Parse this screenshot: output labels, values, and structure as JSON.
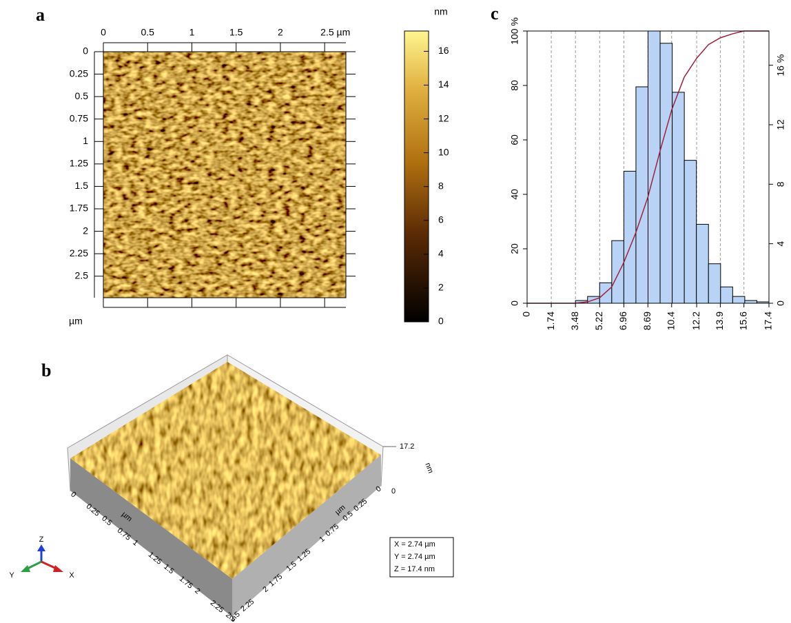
{
  "panel_a": {
    "label": "a",
    "xticks": [
      0,
      0.5,
      1,
      1.5,
      2,
      {
        "value": 2.5,
        "label": "2.5 µm"
      }
    ],
    "yticks": [
      0,
      0.25,
      0.5,
      0.75,
      1,
      1.25,
      1.5,
      1.75,
      2,
      2.25,
      2.5
    ],
    "xlim": [
      0,
      2.74
    ],
    "ylim": [
      0,
      2.74
    ],
    "y_unit": "µm",
    "colorbar_unit": "nm",
    "colorbar_ticks": [
      0,
      2,
      4,
      6,
      8,
      10,
      12,
      14,
      16
    ],
    "colorbar_lim": [
      0,
      17.2
    ]
  },
  "panel_b": {
    "label": "b",
    "z_labels": [
      17.2,
      0
    ],
    "z_unit": "nm",
    "unit": "µm",
    "left_ticks": [
      0,
      0.25,
      0.5,
      0.75,
      1,
      1.25,
      1.5,
      1.75,
      2,
      2.25,
      2.5
    ],
    "right_ticks": [
      0,
      0.25,
      0.5,
      0.75,
      1,
      1.25,
      1.5,
      1.75,
      2,
      2.25,
      2.5
    ],
    "info": [
      "X = 2.74 µm",
      "Y = 2.74 µm",
      "Z = 17.4 nm"
    ],
    "axes": [
      "Z",
      "Y",
      "X"
    ]
  },
  "chart_data": {
    "type": "histogram",
    "label": "c",
    "bins": [
      0,
      0.87,
      1.74,
      2.61,
      3.48,
      4.35,
      5.22,
      6.09,
      6.96,
      7.83,
      8.7,
      9.57,
      10.44,
      11.31,
      12.18,
      13.05,
      13.92,
      14.79,
      15.66,
      16.53,
      17.4
    ],
    "values": [
      0,
      0,
      0,
      0,
      1,
      2.5,
      7.5,
      23,
      48.5,
      79.5,
      100,
      95.5,
      77.5,
      52.5,
      29,
      14.5,
      6,
      2.5,
      1,
      0.5
    ],
    "color": "#b9d3f7",
    "cumulative": {
      "color": "#a0203a",
      "x": [
        0,
        3.48,
        4.35,
        5.22,
        6.09,
        6.96,
        7.83,
        8.69,
        9.57,
        10.4,
        11.3,
        12.2,
        13.05,
        13.9,
        14.8,
        15.6,
        17.4
      ],
      "values": [
        0,
        0,
        0.5,
        2,
        6,
        15,
        26,
        39,
        56,
        71,
        83,
        90,
        95,
        97.5,
        99,
        100,
        100
      ]
    },
    "xlim": [
      0,
      17.4
    ],
    "ylim": [
      0,
      100
    ],
    "y2lim": [
      0,
      18.3
    ],
    "xticks": [
      0,
      1.74,
      3.48,
      5.22,
      6.96,
      8.69,
      10.4,
      12.2,
      13.9,
      15.6,
      17.4
    ],
    "yticks": [
      0,
      20,
      40,
      60,
      80,
      {
        "value": 100,
        "label": "100 %"
      }
    ],
    "y2ticks": [
      0,
      4,
      8,
      12,
      {
        "value": 16,
        "label": "16 %"
      }
    ],
    "grid": true
  }
}
